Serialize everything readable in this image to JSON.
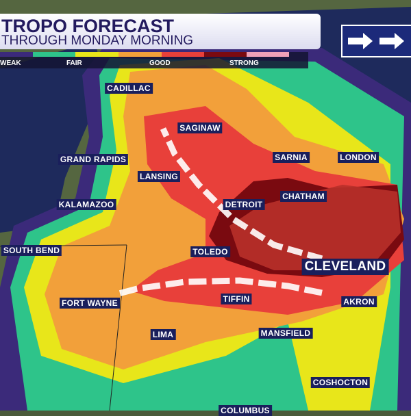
{
  "header": {
    "title": "TROPO FORECAST",
    "subtitle": "THROUGH MONDAY MORNING"
  },
  "legend": {
    "colors": [
      "#3b2a7a",
      "#2ec48a",
      "#e8e61a",
      "#f2a03a",
      "#e8403a",
      "#7a0a10",
      "#f0a0b8"
    ],
    "labels": {
      "weak": "WEAK",
      "fair": "FAIR",
      "good": "GOOD",
      "strong": "STRONG"
    }
  },
  "nav": {
    "icon": "double-arrow-right-icon"
  },
  "cities": [
    {
      "name": "CADILLAC"
    },
    {
      "name": "SAGINAW"
    },
    {
      "name": "GRAND RAPIDS"
    },
    {
      "name": "LANSING"
    },
    {
      "name": "SARNIA"
    },
    {
      "name": "LONDON"
    },
    {
      "name": "DETROIT"
    },
    {
      "name": "CHATHAM"
    },
    {
      "name": "KALAMAZOO"
    },
    {
      "name": "SOUTH BEND"
    },
    {
      "name": "TOLEDO"
    },
    {
      "name": "CLEVELAND"
    },
    {
      "name": "FORT WAYNE"
    },
    {
      "name": "TIFFIN"
    },
    {
      "name": "AKRON"
    },
    {
      "name": "LIMA"
    },
    {
      "name": "MANSFIELD"
    },
    {
      "name": "COSHOCTON"
    },
    {
      "name": "COLUMBUS"
    }
  ]
}
